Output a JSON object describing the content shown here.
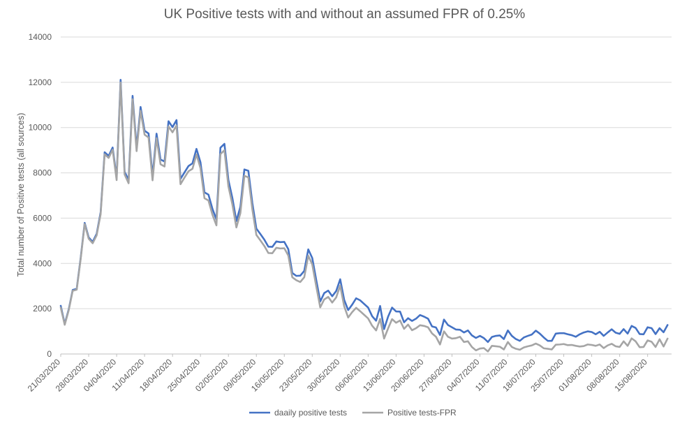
{
  "chart_data": {
    "type": "line",
    "title": "UK Positive tests with and without an assumed FPR of 0.25%",
    "xlabel": "",
    "ylabel": "Total number of Positive tests (all sources)",
    "ylim": [
      0,
      14000
    ],
    "yticks": [
      "0",
      "2000",
      "4000",
      "6000",
      "8000",
      "10000",
      "12000",
      "14000"
    ],
    "x_tick_labels": [
      "21/03/2020",
      "28/03/2020",
      "04/04/2020",
      "11/04/2020",
      "18/04/2020",
      "25/04/2020",
      "02/05/2020",
      "09/05/2020",
      "16/05/2020",
      "23/05/2020",
      "30/05/2020",
      "06/06/2020",
      "13/06/2020",
      "20/06/2020",
      "27/06/2020",
      "04/07/2020",
      "11/07/2020",
      "18/07/2020",
      "25/07/2020",
      "01/08/2020",
      "08/08/2020",
      "15/08/2020"
    ],
    "x_start": "21/03/2020",
    "x_end": "21/08/2020",
    "grid": "horizontal",
    "legend_position": "bottom",
    "series": [
      {
        "name": "daaily positive tests",
        "color": "#4472C4",
        "values": [
          2129,
          1330,
          1970,
          2830,
          2880,
          4250,
          5790,
          5150,
          4950,
          5310,
          6260,
          8910,
          8750,
          9120,
          7790,
          12110,
          8050,
          7680,
          11400,
          9120,
          10910,
          9860,
          9740,
          7860,
          9730,
          8590,
          8500,
          10280,
          10020,
          10330,
          7730,
          8020,
          8300,
          8420,
          9060,
          8470,
          7140,
          7040,
          6410,
          5940,
          9110,
          9280,
          7680,
          6880,
          5870,
          6500,
          8150,
          8090,
          6660,
          5540,
          5300,
          5050,
          4740,
          4730,
          4970,
          4940,
          4950,
          4630,
          3580,
          3450,
          3460,
          3670,
          4620,
          4240,
          3270,
          2320,
          2690,
          2800,
          2550,
          2780,
          3300,
          2390,
          1940,
          2180,
          2460,
          2370,
          2210,
          2050,
          1670,
          1470,
          2120,
          1100,
          1650,
          2050,
          1880,
          1870,
          1400,
          1580,
          1460,
          1560,
          1720,
          1650,
          1560,
          1220,
          1170,
          840,
          1520,
          1280,
          1180,
          1080,
          1070,
          950,
          1040,
          820,
          710,
          800,
          700,
          530,
          750,
          800,
          820,
          660,
          1040,
          800,
          660,
          580,
          730,
          800,
          860,
          1030,
          900,
          730,
          580,
          580,
          900,
          920,
          920,
          870,
          830,
          760,
          870,
          950,
          1000,
          970,
          870,
          980,
          800,
          950,
          1090,
          940,
          890,
          1100,
          900,
          1240,
          1150,
          880,
          870,
          1180,
          1140,
          880,
          1140,
          960,
          1280
        ]
      },
      {
        "name": "Positive tests-FPR",
        "color": "#A5A5A5",
        "values": [
          2050,
          1290,
          1930,
          2790,
          2840,
          4200,
          5740,
          5090,
          4890,
          5240,
          6180,
          8820,
          8660,
          9020,
          7680,
          11990,
          7930,
          7540,
          11250,
          8960,
          10740,
          9690,
          9560,
          7670,
          9530,
          8380,
          8280,
          10050,
          9790,
          10090,
          7500,
          7790,
          8070,
          8180,
          8810,
          8210,
          6880,
          6780,
          6150,
          5680,
          8830,
          9000,
          7400,
          6600,
          5590,
          6220,
          7870,
          7800,
          6380,
          5260,
          5020,
          4770,
          4460,
          4450,
          4690,
          4660,
          4670,
          4350,
          3390,
          3260,
          3180,
          3390,
          4340,
          3960,
          2990,
          2060,
          2410,
          2520,
          2270,
          2500,
          3020,
          2110,
          1610,
          1850,
          2040,
          1890,
          1730,
          1570,
          1250,
          1040,
          1550,
          680,
          1130,
          1540,
          1380,
          1480,
          1110,
          1300,
          1050,
          1140,
          1270,
          1240,
          1180,
          910,
          760,
          420,
          1000,
          760,
          680,
          700,
          760,
          530,
          560,
          310,
          160,
          240,
          260,
          110,
          360,
          340,
          320,
          200,
          530,
          310,
          230,
          190,
          290,
          340,
          380,
          460,
          380,
          250,
          230,
          200,
          410,
          420,
          440,
          390,
          400,
          360,
          330,
          350,
          420,
          400,
          360,
          420,
          260,
          380,
          450,
          340,
          310,
          560,
          360,
          690,
          560,
          300,
          310,
          600,
          540,
          310,
          650,
          330,
          680
        ]
      }
    ]
  }
}
